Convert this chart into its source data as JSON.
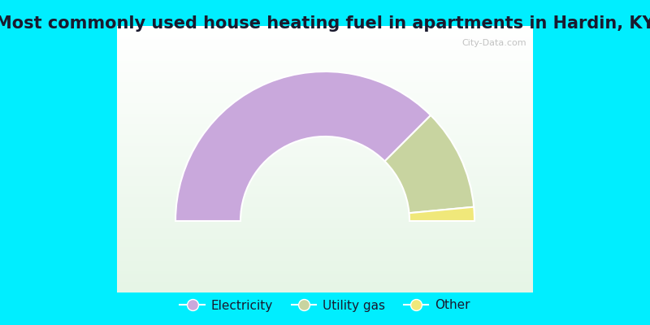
{
  "title": "Most commonly used house heating fuel in apartments in Hardin, KY",
  "segments": [
    {
      "label": "Electricity",
      "value": 75.0,
      "color": "#c9a8dc"
    },
    {
      "label": "Utility gas",
      "value": 22.0,
      "color": "#c8d4a0"
    },
    {
      "label": "Other",
      "value": 3.0,
      "color": "#f0e87a"
    }
  ],
  "background_color": "#00eeff",
  "title_color": "#1a1a2e",
  "title_fontsize": 15,
  "legend_fontsize": 11,
  "watermark": "City-Data.com"
}
